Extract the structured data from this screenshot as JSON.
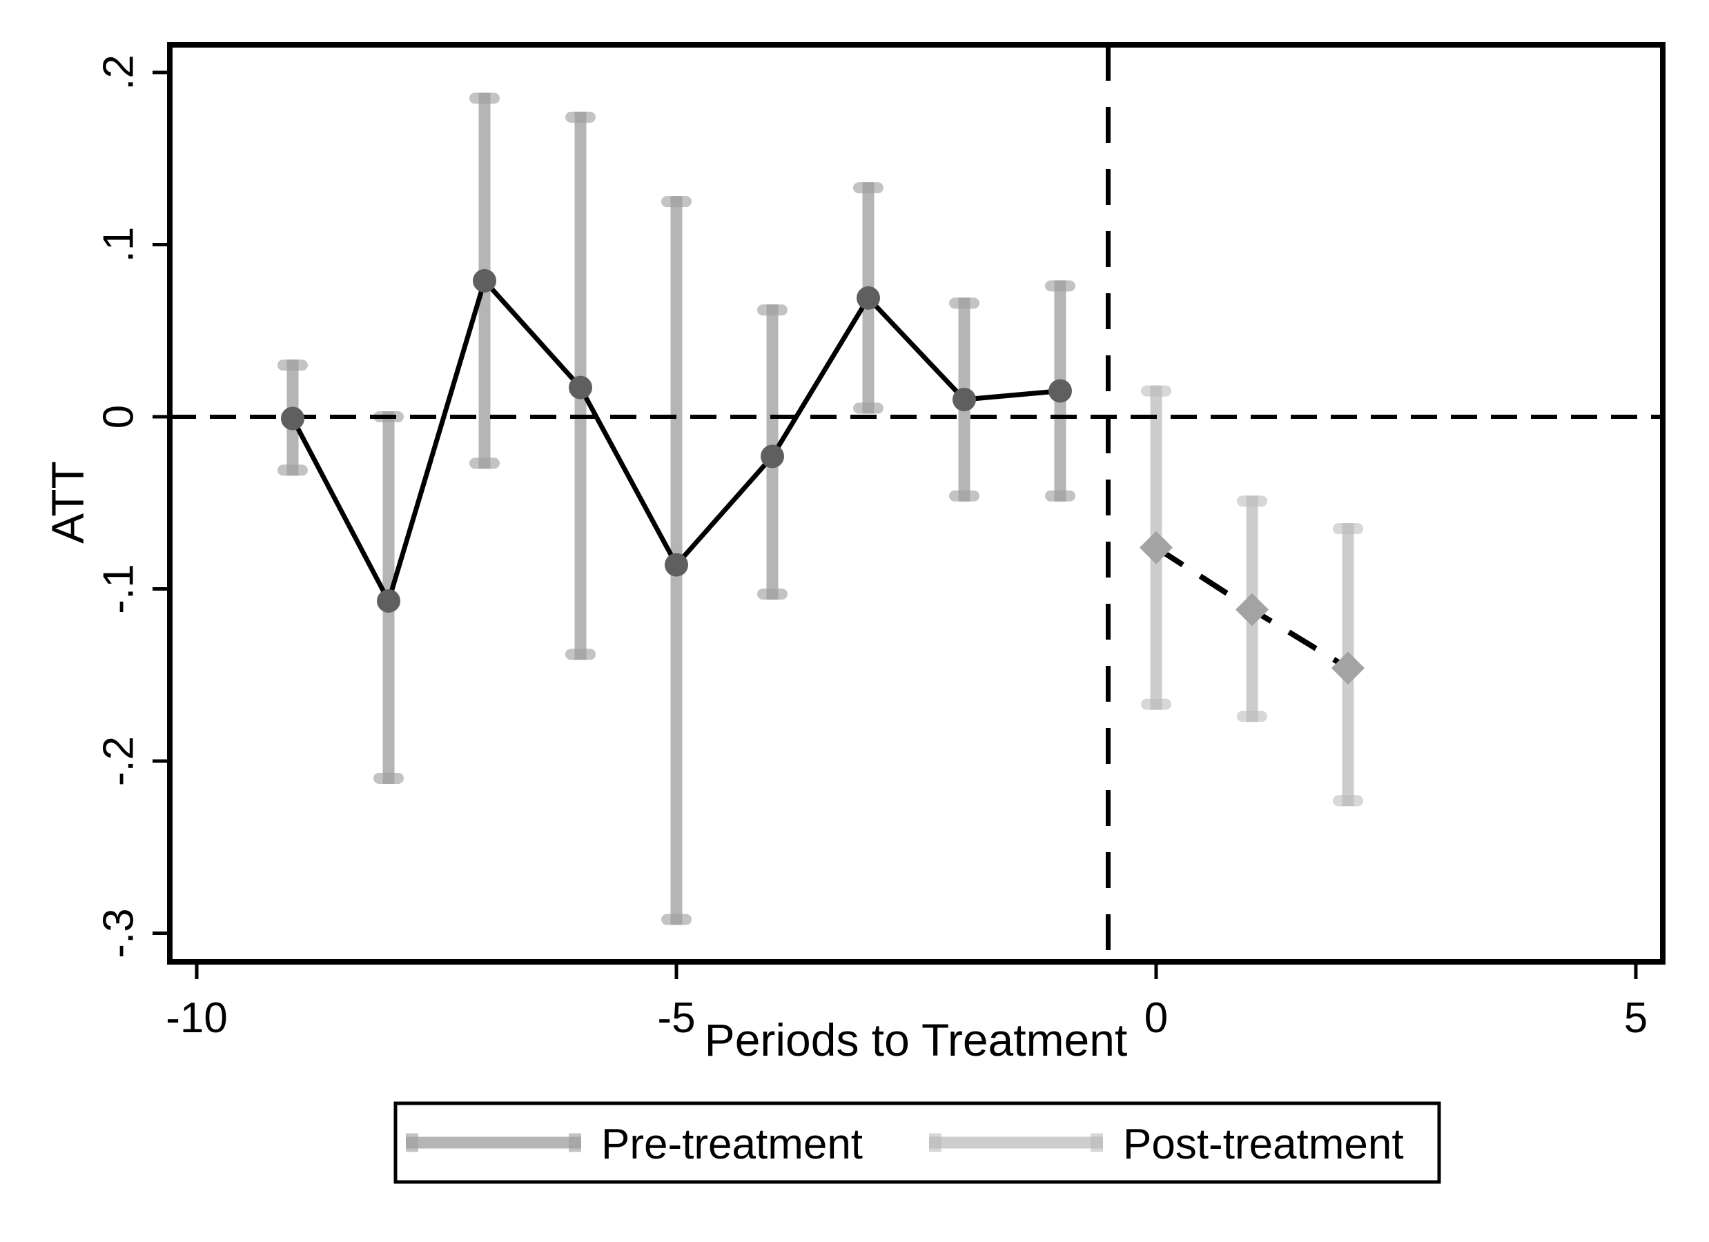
{
  "chart_data": {
    "type": "scatter",
    "title": "",
    "xlabel": "Periods to Treatment",
    "ylabel": "ATT",
    "x_ticks": [
      -10,
      -5,
      0,
      5
    ],
    "x_tick_labels": [
      "-10",
      "-5",
      "0",
      "5"
    ],
    "y_ticks": [
      0.2,
      0.1,
      0,
      -0.1,
      -0.2,
      -0.3
    ],
    "y_tick_labels": [
      ".2",
      ".1",
      "0",
      "-.1",
      "-.2",
      "-.3"
    ],
    "xlim": [
      -10.3,
      5.3
    ],
    "ylim": [
      -0.317,
      0.216
    ],
    "grid": false,
    "reference_lines": {
      "horizontal_y": 0,
      "vertical_x": -0.5,
      "style": "dashed",
      "color": "#000000"
    },
    "legend": {
      "position": "bottom",
      "entries": [
        {
          "label": "Pre-treatment",
          "series": "pre"
        },
        {
          "label": "Post-treatment",
          "series": "post"
        }
      ]
    },
    "series": [
      {
        "name": "Pre-treatment",
        "marker": "circle",
        "line_style": "solid",
        "points": [
          {
            "x": -9,
            "y": -0.001,
            "ci_low": -0.031,
            "ci_high": 0.03
          },
          {
            "x": -8,
            "y": -0.107,
            "ci_low": -0.21,
            "ci_high": 0.0
          },
          {
            "x": -7,
            "y": 0.079,
            "ci_low": -0.027,
            "ci_high": 0.185
          },
          {
            "x": -6,
            "y": 0.017,
            "ci_low": -0.138,
            "ci_high": 0.174
          },
          {
            "x": -5,
            "y": -0.086,
            "ci_low": -0.292,
            "ci_high": 0.125
          },
          {
            "x": -4,
            "y": -0.023,
            "ci_low": -0.103,
            "ci_high": 0.062
          },
          {
            "x": -3,
            "y": 0.069,
            "ci_low": 0.005,
            "ci_high": 0.133
          },
          {
            "x": -2,
            "y": 0.01,
            "ci_low": -0.046,
            "ci_high": 0.066
          },
          {
            "x": -1,
            "y": 0.015,
            "ci_low": -0.046,
            "ci_high": 0.076
          }
        ]
      },
      {
        "name": "Post-treatment",
        "marker": "diamond",
        "line_style": "dashed",
        "points": [
          {
            "x": 0,
            "y": -0.076,
            "ci_low": -0.167,
            "ci_high": 0.015
          },
          {
            "x": 1,
            "y": -0.112,
            "ci_low": -0.174,
            "ci_high": -0.049
          },
          {
            "x": 2,
            "y": -0.146,
            "ci_low": -0.223,
            "ci_high": -0.065
          }
        ]
      }
    ],
    "colors": {
      "pre_bar": "#b5b5b5",
      "pre_cap": "#c3c3c3",
      "pre_overlap": "#a7a7a7",
      "pre_marker": "#5f5f5f",
      "post_bar": "#cdcdcd",
      "post_cap": "#d7d7d7",
      "post_overlap": "#c2c2c2",
      "post_marker": "#a3a3a3",
      "line": "#000000",
      "frame": "#000000",
      "background": "#ffffff"
    }
  }
}
